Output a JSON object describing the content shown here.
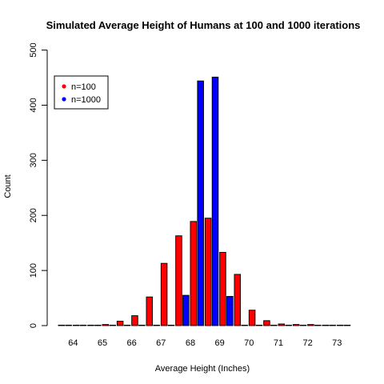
{
  "chart_data": {
    "type": "bar",
    "title": "Simulated Average Height of Humans at 100 and 1000 iterations",
    "xlabel": "Average Height (Inches)",
    "ylabel": "Count",
    "ylim": [
      0,
      500
    ],
    "yticks": [
      "0",
      "100",
      "200",
      "300",
      "400",
      "500"
    ],
    "x_tick_labels": [
      "64",
      "65",
      "66",
      "67",
      "68",
      "69",
      "70",
      "71",
      "72",
      "73"
    ],
    "categories": [
      "63.75",
      "64.25",
      "64.75",
      "65.25",
      "65.75",
      "66.25",
      "66.75",
      "67.25",
      "67.75",
      "68.25",
      "68.75",
      "69.25",
      "69.75",
      "70.25",
      "70.75",
      "71.25",
      "71.75",
      "72.25",
      "72.75",
      "73.25"
    ],
    "series": [
      {
        "name": "n=100",
        "color": "#ff0000",
        "values": [
          0,
          0,
          0,
          2,
          8,
          18,
          52,
          113,
          163,
          189,
          195,
          133,
          93,
          28,
          9,
          3,
          2,
          2,
          0,
          0
        ]
      },
      {
        "name": "n=1000",
        "color": "#0000ff",
        "values": [
          0,
          0,
          0,
          0,
          0,
          0,
          0,
          0,
          55,
          444,
          451,
          53,
          0,
          0,
          0,
          0,
          0,
          0,
          0,
          0
        ]
      }
    ],
    "legend_position": "top-left",
    "grid": false
  }
}
